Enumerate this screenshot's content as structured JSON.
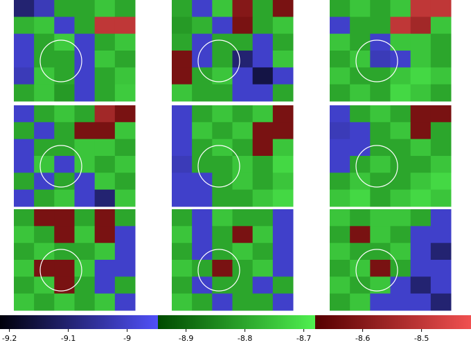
{
  "chart_data": {
    "type": "heatmap-grid",
    "clim": [
      -9.216,
      -8.416
    ],
    "colormap": [
      {
        "from": -9.216,
        "to": -8.948,
        "colors": [
          "#00000a",
          "#5050f8"
        ]
      },
      {
        "from": -8.948,
        "to": -8.681,
        "colors": [
          "#004a00",
          "#50f050"
        ]
      },
      {
        "from": -8.681,
        "to": -8.416,
        "colors": [
          "#560000",
          "#f05050"
        ]
      }
    ],
    "cticks": [
      -9.2,
      -9.1,
      -9,
      -8.9,
      -8.8,
      -8.7,
      -8.6,
      -8.5
    ],
    "panels": [
      {
        "values": [
          [
            -9.1,
            -9.02,
            -8.8,
            -8.8,
            -8.75,
            -8.8
          ],
          [
            -8.78,
            -8.75,
            -9.0,
            -8.8,
            -8.5,
            -8.5
          ],
          [
            -9.0,
            -8.8,
            -8.74,
            -9.0,
            -8.8,
            -8.75
          ],
          [
            -9.0,
            -8.8,
            -8.8,
            -9.0,
            -8.75,
            -8.8
          ],
          [
            -9.02,
            -8.75,
            -8.8,
            -9.0,
            -8.8,
            -8.75
          ],
          [
            -8.8,
            -8.75,
            -8.82,
            -9.0,
            -8.8,
            -8.74
          ]
        ]
      },
      {
        "values": [
          [
            -8.8,
            -9.0,
            -8.75,
            -8.6,
            -8.8,
            -8.62
          ],
          [
            -8.82,
            -8.78,
            -9.0,
            -8.62,
            -8.8,
            -8.75
          ],
          [
            -8.8,
            -9.0,
            -8.8,
            -8.8,
            -9.0,
            -8.8
          ],
          [
            -8.62,
            -9.0,
            -8.8,
            -9.1,
            -9.0,
            -8.75
          ],
          [
            -8.62,
            -8.8,
            -8.75,
            -9.0,
            -9.15,
            -9.0
          ],
          [
            -8.75,
            -8.8,
            -8.8,
            -9.0,
            -9.0,
            -8.8
          ]
        ]
      },
      {
        "values": [
          [
            -8.8,
            -8.75,
            -8.8,
            -8.75,
            -8.5,
            -8.5
          ],
          [
            -9.0,
            -8.8,
            -8.8,
            -8.5,
            -8.55,
            -8.75
          ],
          [
            -8.75,
            -8.8,
            -9.0,
            -8.75,
            -8.75,
            -8.8
          ],
          [
            -8.8,
            -8.75,
            -9.02,
            -9.0,
            -8.75,
            -8.8
          ],
          [
            -8.75,
            -8.8,
            -8.8,
            -8.75,
            -8.72,
            -8.75
          ],
          [
            -8.8,
            -8.75,
            -8.8,
            -8.72,
            -8.75,
            -8.8
          ]
        ]
      },
      {
        "values": [
          [
            -9.0,
            -8.8,
            -8.75,
            -8.8,
            -8.55,
            -8.62
          ],
          [
            -8.8,
            -9.0,
            -8.8,
            -8.62,
            -8.62,
            -8.75
          ],
          [
            -9.0,
            -8.8,
            -8.8,
            -8.75,
            -8.75,
            -8.8
          ],
          [
            -9.0,
            -8.75,
            -9.0,
            -8.75,
            -8.8,
            -8.75
          ],
          [
            -8.8,
            -9.0,
            -8.8,
            -9.0,
            -8.75,
            -8.8
          ],
          [
            -9.0,
            -8.8,
            -8.75,
            -9.0,
            -9.1,
            -8.75
          ]
        ]
      },
      {
        "values": [
          [
            -9.0,
            -8.8,
            -8.75,
            -8.8,
            -8.75,
            -8.62
          ],
          [
            -9.0,
            -8.75,
            -8.8,
            -8.75,
            -8.62,
            -8.62
          ],
          [
            -9.0,
            -8.8,
            -8.75,
            -8.8,
            -8.62,
            -8.75
          ],
          [
            -9.02,
            -8.8,
            -8.8,
            -8.75,
            -8.8,
            -8.72
          ],
          [
            -9.0,
            -9.0,
            -8.8,
            -8.75,
            -8.8,
            -8.75
          ],
          [
            -9.0,
            -9.0,
            -8.8,
            -8.8,
            -8.75,
            -8.72
          ]
        ]
      },
      {
        "values": [
          [
            -9.0,
            -8.8,
            -8.75,
            -8.8,
            -8.62,
            -8.62
          ],
          [
            -9.02,
            -9.0,
            -8.8,
            -8.75,
            -8.62,
            -8.8
          ],
          [
            -9.0,
            -9.0,
            -8.8,
            -8.8,
            -8.75,
            -8.8
          ],
          [
            -9.0,
            -8.8,
            -8.75,
            -8.8,
            -8.8,
            -8.75
          ],
          [
            -8.8,
            -8.75,
            -8.8,
            -8.8,
            -8.75,
            -8.72
          ],
          [
            -8.75,
            -8.72,
            -8.8,
            -8.75,
            -8.72,
            -8.75
          ]
        ]
      },
      {
        "values": [
          [
            -8.8,
            -8.62,
            -8.62,
            -8.8,
            -8.62,
            -8.8
          ],
          [
            -8.75,
            -8.8,
            -8.62,
            -8.75,
            -8.62,
            -9.0
          ],
          [
            -8.8,
            -8.75,
            -8.8,
            -8.8,
            -8.75,
            -9.0
          ],
          [
            -8.75,
            -8.62,
            -8.62,
            -8.75,
            -9.0,
            -9.0
          ],
          [
            -8.8,
            -8.75,
            -8.62,
            -8.8,
            -9.0,
            -8.8
          ],
          [
            -8.75,
            -8.8,
            -8.75,
            -8.8,
            -8.75,
            -9.0
          ]
        ]
      },
      {
        "values": [
          [
            -8.8,
            -9.0,
            -8.75,
            -8.8,
            -8.8,
            -9.0
          ],
          [
            -8.75,
            -9.0,
            -8.8,
            -8.62,
            -8.75,
            -9.0
          ],
          [
            -8.8,
            -9.0,
            -8.8,
            -8.75,
            -8.8,
            -9.0
          ],
          [
            -8.75,
            -8.8,
            -8.62,
            -8.8,
            -8.75,
            -9.0
          ],
          [
            -8.8,
            -9.0,
            -8.8,
            -8.8,
            -9.0,
            -8.8
          ],
          [
            -8.75,
            -8.8,
            -9.0,
            -8.8,
            -8.8,
            -9.0
          ]
        ]
      },
      {
        "values": [
          [
            -8.75,
            -8.8,
            -8.75,
            -8.75,
            -8.8,
            -9.0
          ],
          [
            -8.8,
            -8.62,
            -8.75,
            -8.8,
            -9.0,
            -9.0
          ],
          [
            -8.75,
            -8.8,
            -8.8,
            -8.75,
            -9.0,
            -9.1
          ],
          [
            -8.8,
            -8.75,
            -8.62,
            -8.8,
            -9.0,
            -9.0
          ],
          [
            -8.75,
            -8.8,
            -8.75,
            -9.0,
            -9.1,
            -9.0
          ],
          [
            -8.8,
            -8.75,
            -9.0,
            -9.0,
            -9.0,
            -9.1
          ]
        ]
      }
    ]
  }
}
